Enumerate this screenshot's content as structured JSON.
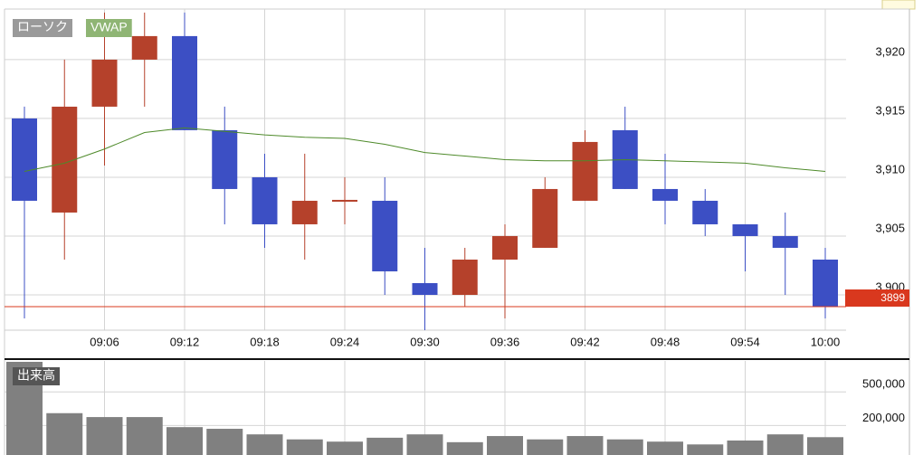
{
  "chart_data": [
    {
      "type": "candlestick",
      "legend": "ローソク",
      "categories": [
        null,
        null,
        "09:06",
        null,
        "09:12",
        null,
        "09:18",
        null,
        "09:24",
        null,
        "09:30",
        null,
        "09:36",
        null,
        "09:42",
        null,
        "09:48",
        null,
        "09:54",
        null,
        "10:00"
      ],
      "open": [
        3915,
        3907,
        3916,
        3920,
        3922,
        3914,
        3910,
        3906,
        3908,
        3908,
        3901,
        3900,
        3903,
        3904,
        3908,
        3914,
        3909,
        3908,
        3906,
        3905,
        3903
      ],
      "high": [
        3916,
        3920,
        3924,
        3924,
        3924,
        3916,
        3912,
        3912,
        3910,
        3910,
        3904,
        3904,
        3906,
        3910,
        3914,
        3916,
        3912,
        3909,
        3906,
        3907,
        3904
      ],
      "low": [
        3898,
        3903,
        3911,
        3916,
        3914,
        3906,
        3904,
        3903,
        3906,
        3900,
        3897,
        3899,
        3898,
        3904,
        3908,
        3909,
        3906,
        3905,
        3902,
        3900,
        3898
      ],
      "close": [
        3908,
        3916,
        3920,
        3922,
        3914,
        3909,
        3906,
        3908,
        3908,
        3902,
        3900,
        3903,
        3905,
        3909,
        3913,
        3909,
        3908,
        3906,
        3905,
        3904,
        3899
      ],
      "up_color": "#b5412b",
      "down_color": "#3c4fc4",
      "series": [
        {
          "name": "VWAP",
          "color": "#4e8a2a",
          "values": [
            3910.5,
            3911.2,
            3912.4,
            3913.8,
            3914.2,
            3913.9,
            3913.6,
            3913.4,
            3913.3,
            3912.8,
            3912.1,
            3911.8,
            3911.5,
            3911.4,
            3911.4,
            3911.5,
            3911.4,
            3911.3,
            3911.2,
            3910.8,
            3910.5
          ]
        }
      ],
      "last_price": 3899,
      "last_price_color": "#d9381e",
      "ylim": [
        3897,
        3924.3
      ],
      "yticks": [
        {
          "value": 3900,
          "label": "3,900"
        },
        {
          "value": 3905,
          "label": "3,905"
        },
        {
          "value": 3910,
          "label": "3,910"
        },
        {
          "value": 3915,
          "label": "3,915"
        },
        {
          "value": 3920,
          "label": "3,920"
        }
      ],
      "grid": true
    },
    {
      "type": "bar",
      "legend": "出来高",
      "values": [
        770000,
        310000,
        275000,
        275000,
        185000,
        170000,
        120000,
        75000,
        55000,
        90000,
        120000,
        50000,
        105000,
        75000,
        105000,
        75000,
        55000,
        30000,
        65000,
        120000,
        95000
      ],
      "color": "#808080",
      "ylim": [
        0,
        770000
      ],
      "yticks": [
        {
          "value": 200000,
          "label": "200,000"
        },
        {
          "value": 500000,
          "label": "500,000"
        }
      ],
      "grid": true
    }
  ]
}
